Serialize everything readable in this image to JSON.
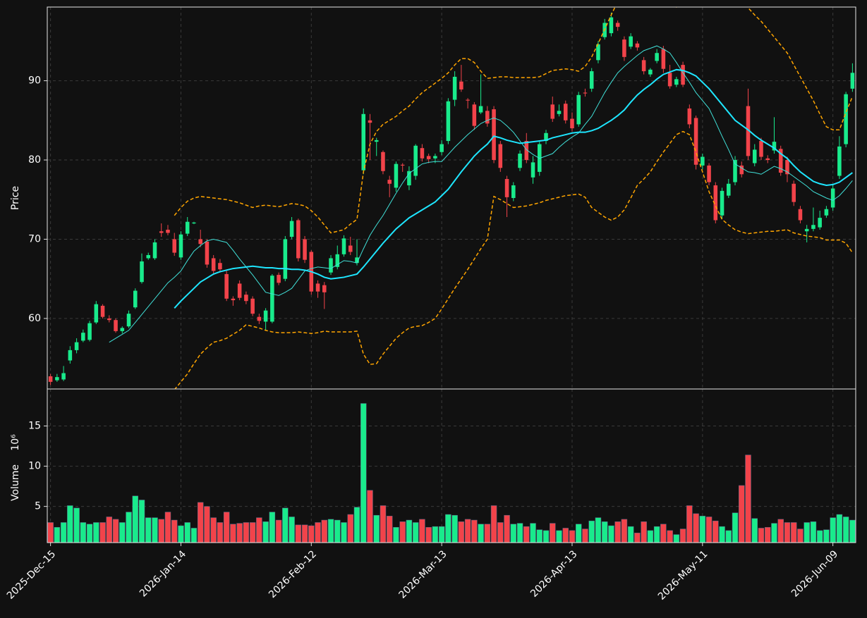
{
  "chart_data": {
    "type": "candlestick",
    "ylabel": "Price",
    "y2label": "Volume",
    "y2_offset_label": "10⁶",
    "categories": [
      "2025-Dec-15",
      null,
      null,
      null,
      null,
      null,
      null,
      null,
      null,
      null,
      null,
      null,
      null,
      null,
      null,
      null,
      null,
      null,
      null,
      null,
      "2026-Jan-14",
      null,
      null,
      null,
      null,
      null,
      null,
      null,
      null,
      null,
      null,
      null,
      null,
      null,
      null,
      null,
      null,
      null,
      null,
      null,
      "2026-Feb-12",
      null,
      null,
      null,
      null,
      null,
      null,
      null,
      null,
      null,
      null,
      null,
      null,
      null,
      null,
      null,
      null,
      null,
      null,
      null,
      "2026-Mar-13",
      null,
      null,
      null,
      null,
      null,
      null,
      null,
      null,
      null,
      null,
      null,
      null,
      null,
      null,
      null,
      null,
      null,
      null,
      null,
      "2026-Apr-13",
      null,
      null,
      null,
      null,
      null,
      null,
      null,
      null,
      null,
      null,
      null,
      null,
      null,
      null,
      null,
      null,
      null,
      null,
      null,
      "2026-May-11",
      null,
      null,
      null,
      null,
      null,
      null,
      null,
      null,
      null,
      null,
      null,
      null,
      null,
      null,
      null,
      null,
      null,
      null,
      null,
      "2026-Jun-09",
      null,
      null,
      null
    ],
    "open": [
      52.7,
      52.2,
      52.3,
      54.7,
      56.0,
      57.2,
      57.3,
      59.5,
      61.6,
      60.0,
      59.8,
      58.4,
      59.0,
      61.4,
      64.6,
      67.6,
      67.6,
      71.0,
      71.2,
      70.0,
      67.7,
      70.7,
      72.0,
      70.0,
      69.7,
      67.6,
      67.0,
      65.6,
      62.5,
      64.4,
      63.0,
      62.5,
      60.2,
      59.6,
      59.6,
      65.5,
      65.0,
      70.3,
      72.4,
      70.0,
      68.4,
      64.4,
      64.2,
      65.8,
      66.5,
      68.1,
      69.2,
      67.0,
      78.7,
      85.0,
      82.3,
      81.0,
      77.5,
      76.5,
      79.4,
      76.8,
      78.0,
      81.5,
      80.5,
      80.2,
      81.0,
      82.4,
      87.6,
      89.9,
      87.6,
      87.0,
      86.0,
      86.2,
      86.4,
      82.0,
      77.6,
      75.2,
      79.0,
      82.4,
      77.8,
      78.5,
      82.4,
      87.0,
      85.8,
      87.1,
      85.2,
      84.5,
      88.5,
      89.0,
      92.6,
      95.5,
      96.0,
      97.3,
      95.2,
      94.3,
      94.7,
      92.6,
      90.8,
      92.5,
      94.0,
      91.0,
      89.5,
      92.0,
      86.5,
      85.3,
      79.3,
      79.3,
      76.8,
      73.0,
      75.5,
      77.2,
      79.3,
      86.8,
      79.6,
      82.4,
      80.2,
      81.2,
      81.4,
      80.0,
      77.0,
      73.8,
      71.0,
      71.3,
      71.5,
      73.0,
      74.0,
      78.0,
      82.0,
      89.0
    ],
    "high": [
      53.0,
      53.0,
      54.0,
      56.5,
      57.5,
      58.6,
      59.7,
      62.2,
      61.8,
      60.4,
      60.0,
      59.0,
      61.0,
      63.8,
      68.2,
      68.3,
      70.0,
      72.0,
      71.8,
      70.8,
      71.0,
      72.8,
      72.2,
      71.2,
      70.0,
      68.0,
      67.5,
      66.0,
      62.8,
      64.8,
      63.4,
      62.8,
      60.6,
      61.3,
      65.6,
      65.8,
      70.4,
      72.8,
      72.6,
      70.4,
      68.6,
      64.8,
      64.6,
      68.0,
      69.2,
      70.5,
      70.3,
      70.0,
      86.5,
      85.8,
      82.8,
      81.2,
      78.0,
      79.8,
      79.6,
      79.2,
      82.0,
      82.0,
      80.8,
      80.8,
      82.5,
      87.8,
      91.2,
      92.0,
      87.8,
      87.3,
      90.8,
      86.8,
      86.8,
      82.4,
      78.0,
      77.2,
      81.2,
      83.4,
      80.5,
      82.3,
      83.8,
      88.0,
      87.0,
      87.5,
      86.0,
      88.6,
      89.0,
      91.6,
      95.0,
      97.8,
      98.6,
      97.6,
      95.6,
      96.0,
      95.0,
      93.0,
      91.6,
      94.0,
      94.4,
      92.0,
      90.5,
      92.4,
      87.0,
      85.6,
      80.8,
      79.6,
      77.2,
      76.5,
      77.6,
      80.5,
      79.8,
      89.0,
      82.0,
      82.8,
      80.6,
      85.4,
      81.8,
      80.4,
      77.4,
      74.2,
      71.8,
      74.0,
      73.6,
      74.2,
      77.0,
      83.0,
      88.6,
      92.2
    ],
    "low": [
      51.6,
      52.0,
      52.1,
      54.3,
      55.6,
      57.0,
      57.1,
      59.3,
      60.0,
      59.5,
      58.2,
      58.1,
      58.8,
      61.2,
      64.4,
      67.4,
      67.4,
      70.3,
      70.5,
      67.9,
      67.4,
      70.4,
      71.9,
      69.0,
      66.4,
      65.5,
      65.8,
      62.2,
      61.6,
      62.3,
      61.8,
      60.3,
      59.3,
      58.5,
      59.4,
      64.2,
      64.7,
      70.0,
      67.2,
      67.0,
      63.0,
      62.6,
      61.2,
      65.5,
      66.2,
      67.8,
      68.0,
      66.7,
      78.2,
      80.0,
      80.5,
      78.2,
      75.3,
      76.0,
      78.5,
      76.2,
      77.5,
      79.8,
      79.6,
      79.6,
      80.6,
      82.0,
      86.8,
      88.6,
      86.5,
      83.8,
      85.8,
      84.2,
      79.6,
      78.5,
      72.8,
      74.8,
      78.6,
      79.6,
      77.0,
      78.0,
      82.0,
      84.8,
      85.5,
      84.6,
      83.6,
      84.2,
      88.0,
      88.6,
      92.2,
      95.2,
      95.6,
      96.3,
      92.5,
      94.0,
      93.8,
      90.8,
      90.5,
      92.2,
      91.0,
      89.0,
      89.2,
      89.2,
      84.0,
      78.8,
      78.8,
      76.8,
      72.0,
      72.6,
      75.2,
      76.8,
      77.8,
      80.0,
      79.2,
      80.0,
      79.6,
      80.8,
      78.0,
      77.2,
      74.2,
      72.0,
      69.6,
      71.0,
      71.2,
      72.7,
      73.6,
      77.6,
      81.6,
      88.6
    ],
    "close": [
      52.0,
      52.6,
      53.1,
      56.0,
      57.0,
      58.2,
      59.4,
      61.8,
      60.2,
      59.8,
      58.4,
      58.8,
      60.6,
      63.5,
      67.2,
      68.0,
      69.6,
      70.8,
      70.8,
      68.3,
      70.6,
      72.2,
      72.1,
      69.4,
      66.8,
      66.0,
      66.2,
      62.5,
      62.3,
      62.6,
      62.2,
      60.6,
      59.7,
      61.0,
      65.4,
      64.5,
      70.0,
      72.3,
      67.6,
      67.4,
      63.4,
      63.4,
      63.3,
      67.6,
      68.1,
      70.1,
      68.4,
      67.7,
      85.8,
      84.7,
      82.5,
      78.6,
      77.0,
      79.5,
      79.3,
      78.6,
      81.8,
      80.2,
      80.1,
      80.5,
      82.0,
      87.4,
      90.5,
      88.9,
      87.5,
      84.3,
      86.8,
      84.6,
      80.0,
      79.0,
      75.3,
      76.8,
      80.8,
      80.0,
      79.7,
      82.0,
      83.4,
      85.2,
      86.2,
      85.0,
      84.0,
      88.2,
      88.4,
      91.2,
      94.6,
      97.3,
      98.0,
      96.8,
      93.0,
      95.6,
      94.2,
      91.2,
      91.4,
      93.5,
      91.5,
      89.3,
      90.2,
      89.5,
      84.5,
      79.4,
      80.4,
      77.2,
      72.4,
      76.1,
      77.0,
      80.0,
      78.2,
      80.5,
      81.3,
      80.4,
      80.0,
      82.3,
      78.4,
      78.2,
      74.7,
      72.4,
      71.3,
      71.8,
      72.7,
      73.8,
      76.4,
      81.7,
      88.3,
      91.0
    ],
    "volume": [
      3.0,
      2.4,
      3.0,
      5.1,
      4.8,
      3.0,
      2.8,
      3.0,
      3.0,
      3.7,
      3.4,
      3.0,
      4.3,
      6.3,
      5.8,
      3.6,
      3.6,
      3.4,
      4.3,
      3.3,
      2.6,
      3.0,
      2.3,
      5.5,
      5.0,
      3.6,
      3.0,
      4.3,
      2.8,
      2.9,
      3.0,
      3.0,
      3.6,
      3.1,
      4.3,
      3.3,
      4.8,
      3.7,
      2.7,
      2.7,
      2.6,
      3.0,
      3.3,
      3.4,
      3.3,
      3.0,
      4.0,
      4.9,
      17.8,
      7.0,
      3.9,
      5.1,
      3.8,
      2.4,
      3.1,
      3.3,
      3.0,
      3.4,
      2.4,
      2.5,
      2.5,
      4.0,
      3.9,
      3.1,
      3.4,
      3.3,
      2.8,
      2.8,
      5.1,
      3.0,
      3.9,
      2.8,
      2.9,
      2.5,
      2.9,
      2.1,
      2.0,
      2.9,
      2.0,
      2.3,
      2.0,
      2.8,
      2.2,
      3.2,
      3.6,
      3.1,
      2.6,
      3.1,
      3.4,
      2.5,
      1.7,
      3.1,
      2.0,
      2.5,
      2.8,
      2.0,
      1.5,
      2.2,
      5.1,
      4.1,
      3.8,
      3.7,
      3.2,
      2.5,
      2.0,
      4.2,
      7.6,
      11.4,
      3.5,
      2.3,
      2.4,
      2.9,
      3.4,
      3.0,
      3.0,
      2.2,
      3.0,
      3.1,
      2.0,
      2.1,
      3.6,
      4.0,
      3.7,
      3.3
    ],
    "up_color": "#19eb8c",
    "down_color": "#f2434a",
    "series": [
      {
        "color": "#40e0d8",
        "width": 1,
        "dashed": false,
        "values": [
          null,
          null,
          null,
          null,
          null,
          null,
          null,
          null,
          null,
          57.0,
          57.5,
          58.0,
          58.5,
          59.5,
          60.5,
          61.5,
          62.5,
          63.5,
          64.5,
          65.2,
          66.0,
          67.3,
          68.5,
          69.2,
          69.8,
          70.0,
          69.8,
          69.6,
          68.6,
          67.5,
          66.5,
          65.5,
          64.4,
          63.3,
          63.1,
          62.9,
          63.3,
          63.8,
          64.9,
          66.0,
          66.3,
          66.5,
          66.4,
          66.3,
          66.8,
          67.3,
          67.2,
          67.0,
          68.8,
          70.5,
          71.8,
          73.0,
          74.4,
          75.8,
          77.1,
          78.3,
          78.9,
          79.5,
          79.7,
          79.8,
          79.8,
          80.7,
          81.6,
          82.4,
          83.2,
          83.9,
          84.6,
          85.0,
          85.3,
          85.0,
          84.3,
          83.5,
          82.4,
          81.3,
          80.7,
          80.2,
          80.5,
          80.8,
          81.6,
          82.3,
          82.9,
          83.4,
          84.5,
          85.5,
          87.0,
          88.5,
          89.8,
          91.0,
          91.8,
          92.5,
          93.2,
          93.8,
          94.1,
          94.4,
          94.0,
          93.5,
          92.3,
          91.0,
          89.8,
          88.5,
          87.5,
          86.5,
          84.8,
          83.0,
          81.3,
          79.5,
          79.0,
          78.5,
          78.4,
          78.2,
          78.7,
          79.2,
          78.9,
          78.5,
          77.9,
          77.3,
          76.7,
          76.0,
          75.6,
          75.2,
          74.9,
          75.5,
          76.4,
          77.4
        ]
      },
      {
        "color": "#1ee6ff",
        "width": 2,
        "dashed": false,
        "values": [
          null,
          null,
          null,
          null,
          null,
          null,
          null,
          null,
          null,
          null,
          null,
          null,
          null,
          null,
          null,
          null,
          null,
          null,
          null,
          61.3,
          62.2,
          63.0,
          63.8,
          64.6,
          65.1,
          65.6,
          65.9,
          66.1,
          66.3,
          66.4,
          66.5,
          66.6,
          66.5,
          66.4,
          66.4,
          66.3,
          66.3,
          66.2,
          66.2,
          66.1,
          65.9,
          65.6,
          65.2,
          65.0,
          65.1,
          65.2,
          65.4,
          65.6,
          66.5,
          67.5,
          68.5,
          69.5,
          70.4,
          71.3,
          72.0,
          72.7,
          73.2,
          73.7,
          74.2,
          74.7,
          75.5,
          76.3,
          77.4,
          78.5,
          79.5,
          80.5,
          81.3,
          82.0,
          83.0,
          82.8,
          82.5,
          82.3,
          82.1,
          82.2,
          82.3,
          82.4,
          82.5,
          82.8,
          83.0,
          83.2,
          83.4,
          83.5,
          83.5,
          83.7,
          84.0,
          84.5,
          85.0,
          85.6,
          86.3,
          87.3,
          88.2,
          88.9,
          89.5,
          90.2,
          90.8,
          91.1,
          91.4,
          91.3,
          91.0,
          90.6,
          89.8,
          89.0,
          88.0,
          87.0,
          86.0,
          85.0,
          84.4,
          83.8,
          83.1,
          82.5,
          82.0,
          81.5,
          80.8,
          80.2,
          79.3,
          78.5,
          77.9,
          77.3,
          77.0,
          76.8,
          76.9,
          77.2,
          77.8,
          78.4
        ]
      },
      {
        "color": "#ffa500",
        "width": 1.5,
        "dashed": true,
        "values": [
          null,
          null,
          null,
          null,
          null,
          null,
          null,
          null,
          null,
          null,
          null,
          null,
          null,
          null,
          null,
          null,
          null,
          null,
          null,
          73.0,
          74.0,
          74.8,
          75.2,
          75.4,
          75.3,
          75.2,
          75.1,
          75.0,
          74.8,
          74.6,
          74.3,
          74.0,
          74.2,
          74.3,
          74.2,
          74.1,
          74.3,
          74.5,
          74.4,
          74.2,
          73.6,
          72.8,
          71.8,
          70.8,
          71.0,
          71.2,
          71.9,
          72.5,
          78.5,
          82.0,
          83.6,
          84.5,
          85.0,
          85.5,
          86.2,
          86.8,
          87.7,
          88.5,
          89.1,
          89.7,
          90.3,
          91.0,
          92.0,
          92.8,
          92.8,
          92.3,
          91.2,
          90.3,
          90.4,
          90.5,
          90.5,
          90.4,
          90.4,
          90.4,
          90.4,
          90.5,
          90.9,
          91.3,
          91.4,
          91.5,
          91.4,
          91.2,
          91.8,
          93.0,
          94.7,
          96.5,
          98.3,
          100.0,
          101.0,
          101.6,
          102.0,
          102.0,
          101.5,
          100.7,
          100.0,
          99.5,
          99.3,
          99.4,
          99.6,
          100.0,
          100.5,
          100.8,
          101.0,
          101.0,
          100.9,
          100.7,
          100.4,
          99.2,
          98.3,
          97.5,
          96.5,
          95.5,
          94.5,
          93.5,
          92.0,
          90.5,
          89.0,
          87.5,
          85.8,
          84.2,
          83.8,
          83.8,
          86.0,
          88.0
        ]
      },
      {
        "color": "#ffa500",
        "width": 1.5,
        "dashed": true,
        "values": [
          null,
          null,
          null,
          null,
          null,
          null,
          null,
          null,
          null,
          null,
          null,
          null,
          null,
          null,
          null,
          null,
          null,
          null,
          null,
          51.0,
          52.0,
          53.0,
          54.3,
          55.5,
          56.3,
          57.0,
          57.2,
          57.5,
          58.0,
          58.5,
          59.2,
          59.0,
          58.8,
          58.5,
          58.3,
          58.2,
          58.2,
          58.2,
          58.3,
          58.2,
          58.1,
          58.2,
          58.4,
          58.3,
          58.3,
          58.3,
          58.3,
          58.4,
          55.5,
          54.2,
          54.3,
          55.5,
          56.5,
          57.5,
          58.2,
          58.8,
          59.0,
          59.1,
          59.5,
          60.0,
          61.2,
          62.5,
          63.8,
          65.0,
          66.2,
          67.5,
          68.8,
          70.0,
          75.4,
          75.0,
          74.5,
          74.0,
          74.1,
          74.2,
          74.4,
          74.6,
          74.9,
          75.1,
          75.3,
          75.5,
          75.6,
          75.7,
          75.3,
          74.0,
          73.4,
          72.8,
          72.4,
          72.8,
          73.7,
          75.2,
          76.8,
          77.6,
          78.5,
          79.8,
          81.0,
          82.1,
          83.2,
          83.6,
          83.2,
          81.0,
          78.5,
          76.0,
          74.2,
          72.5,
          71.8,
          71.2,
          70.9,
          70.7,
          70.8,
          70.9,
          71.0,
          71.0,
          71.1,
          71.2,
          70.8,
          70.6,
          70.4,
          70.3,
          70.2,
          69.9,
          69.9,
          69.9,
          69.5,
          68.3
        ]
      }
    ],
    "ylim": [
      51.1,
      99.3
    ],
    "yticks": [
      60,
      70,
      80,
      90
    ],
    "y2lim": [
      0.5,
      19.6
    ],
    "y2ticks": [
      5,
      10,
      15
    ],
    "grid": true
  }
}
